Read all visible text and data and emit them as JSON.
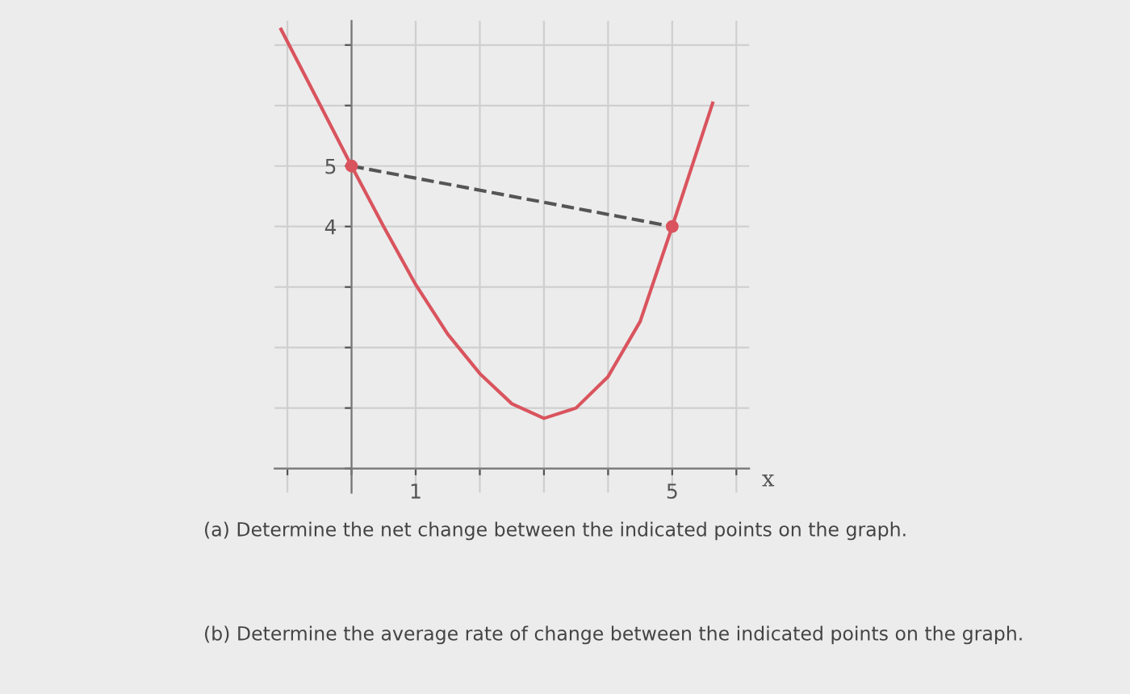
{
  "chart_data": {
    "type": "line",
    "xlabel": "x",
    "xlim": [
      -1.2,
      6.2
    ],
    "ylim": [
      -0.4,
      7.4
    ],
    "xticks": [
      {
        "value": -1,
        "label": null
      },
      {
        "value": 0,
        "label": null
      },
      1,
      {
        "value": 2,
        "label": null
      },
      {
        "value": 3,
        "label": null
      },
      {
        "value": 4,
        "label": null
      },
      5,
      {
        "value": 6,
        "label": null
      }
    ],
    "yticks": [
      {
        "value": 0,
        "label": null
      },
      {
        "value": 1,
        "label": null
      },
      {
        "value": 2,
        "label": null
      },
      {
        "value": 3,
        "label": null
      },
      4,
      5,
      {
        "value": 6,
        "label": null
      },
      {
        "value": 7,
        "label": null
      }
    ],
    "grid": true,
    "series": [
      {
        "color": "#d9545e",
        "line_style": "solid",
        "marker": "none",
        "x": [
          -1.1,
          -0.5,
          0,
          0.5,
          1,
          1.5,
          2,
          2.5,
          3,
          3.5,
          4,
          4.5,
          5,
          5.63
        ],
        "values": [
          7.26,
          6.03,
          5,
          4.0,
          3.04,
          2.22,
          1.57,
          1.07,
          0.83,
          1.0,
          1.52,
          2.43,
          4,
          6.04
        ]
      },
      {
        "color": "#555555",
        "line_style": "dashed",
        "marker": "none",
        "x": [
          0,
          5
        ],
        "values": [
          5,
          4
        ]
      },
      {
        "type": "scatter",
        "color": "#d9545e",
        "marker": "circle",
        "x": [
          0,
          5
        ],
        "values": [
          5,
          4
        ]
      }
    ],
    "annotations": [
      "(a) Determine the net change between the indicated points on the graph.",
      "(b) Determine the average rate of change between the indicated points on the graph."
    ]
  }
}
